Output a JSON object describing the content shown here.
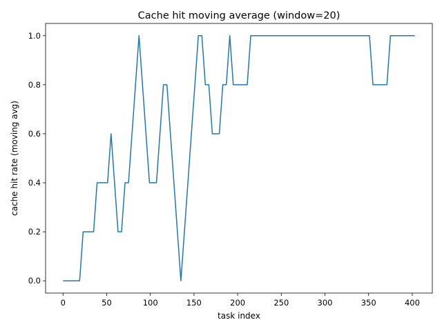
{
  "chart_data": {
    "type": "line",
    "title": "Cache hit moving average (window=20)",
    "xlabel": "task index",
    "ylabel": "cache hit rate (moving avg)",
    "xlim": [
      -20,
      423
    ],
    "ylim": [
      -0.05,
      1.05
    ],
    "xticks": [
      0,
      50,
      100,
      150,
      200,
      250,
      300,
      350,
      400
    ],
    "yticks": [
      0.0,
      0.2,
      0.4,
      0.6,
      0.8,
      1.0
    ],
    "ytick_labels": [
      "0.0",
      "0.2",
      "0.4",
      "0.6",
      "0.8",
      "1.0"
    ],
    "grid": false,
    "legend": "none",
    "series": [
      {
        "color": "#1f77b4",
        "x": [
          0,
          19,
          23,
          35,
          39,
          51,
          55,
          63,
          67,
          71,
          75,
          87,
          99,
          107,
          115,
          119,
          135,
          155,
          159,
          163,
          167,
          171,
          179,
          183,
          187,
          191,
          195,
          211,
          215,
          351,
          355,
          371,
          375,
          403
        ],
        "y": [
          0.0,
          0.0,
          0.2,
          0.2,
          0.4,
          0.4,
          0.6,
          0.2,
          0.2,
          0.4,
          0.4,
          1.0,
          0.4,
          0.4,
          0.8,
          0.8,
          0.0,
          1.0,
          1.0,
          0.8,
          0.8,
          0.6,
          0.6,
          0.8,
          0.8,
          1.0,
          0.8,
          0.8,
          1.0,
          1.0,
          0.8,
          0.8,
          1.0,
          1.0
        ]
      }
    ]
  }
}
